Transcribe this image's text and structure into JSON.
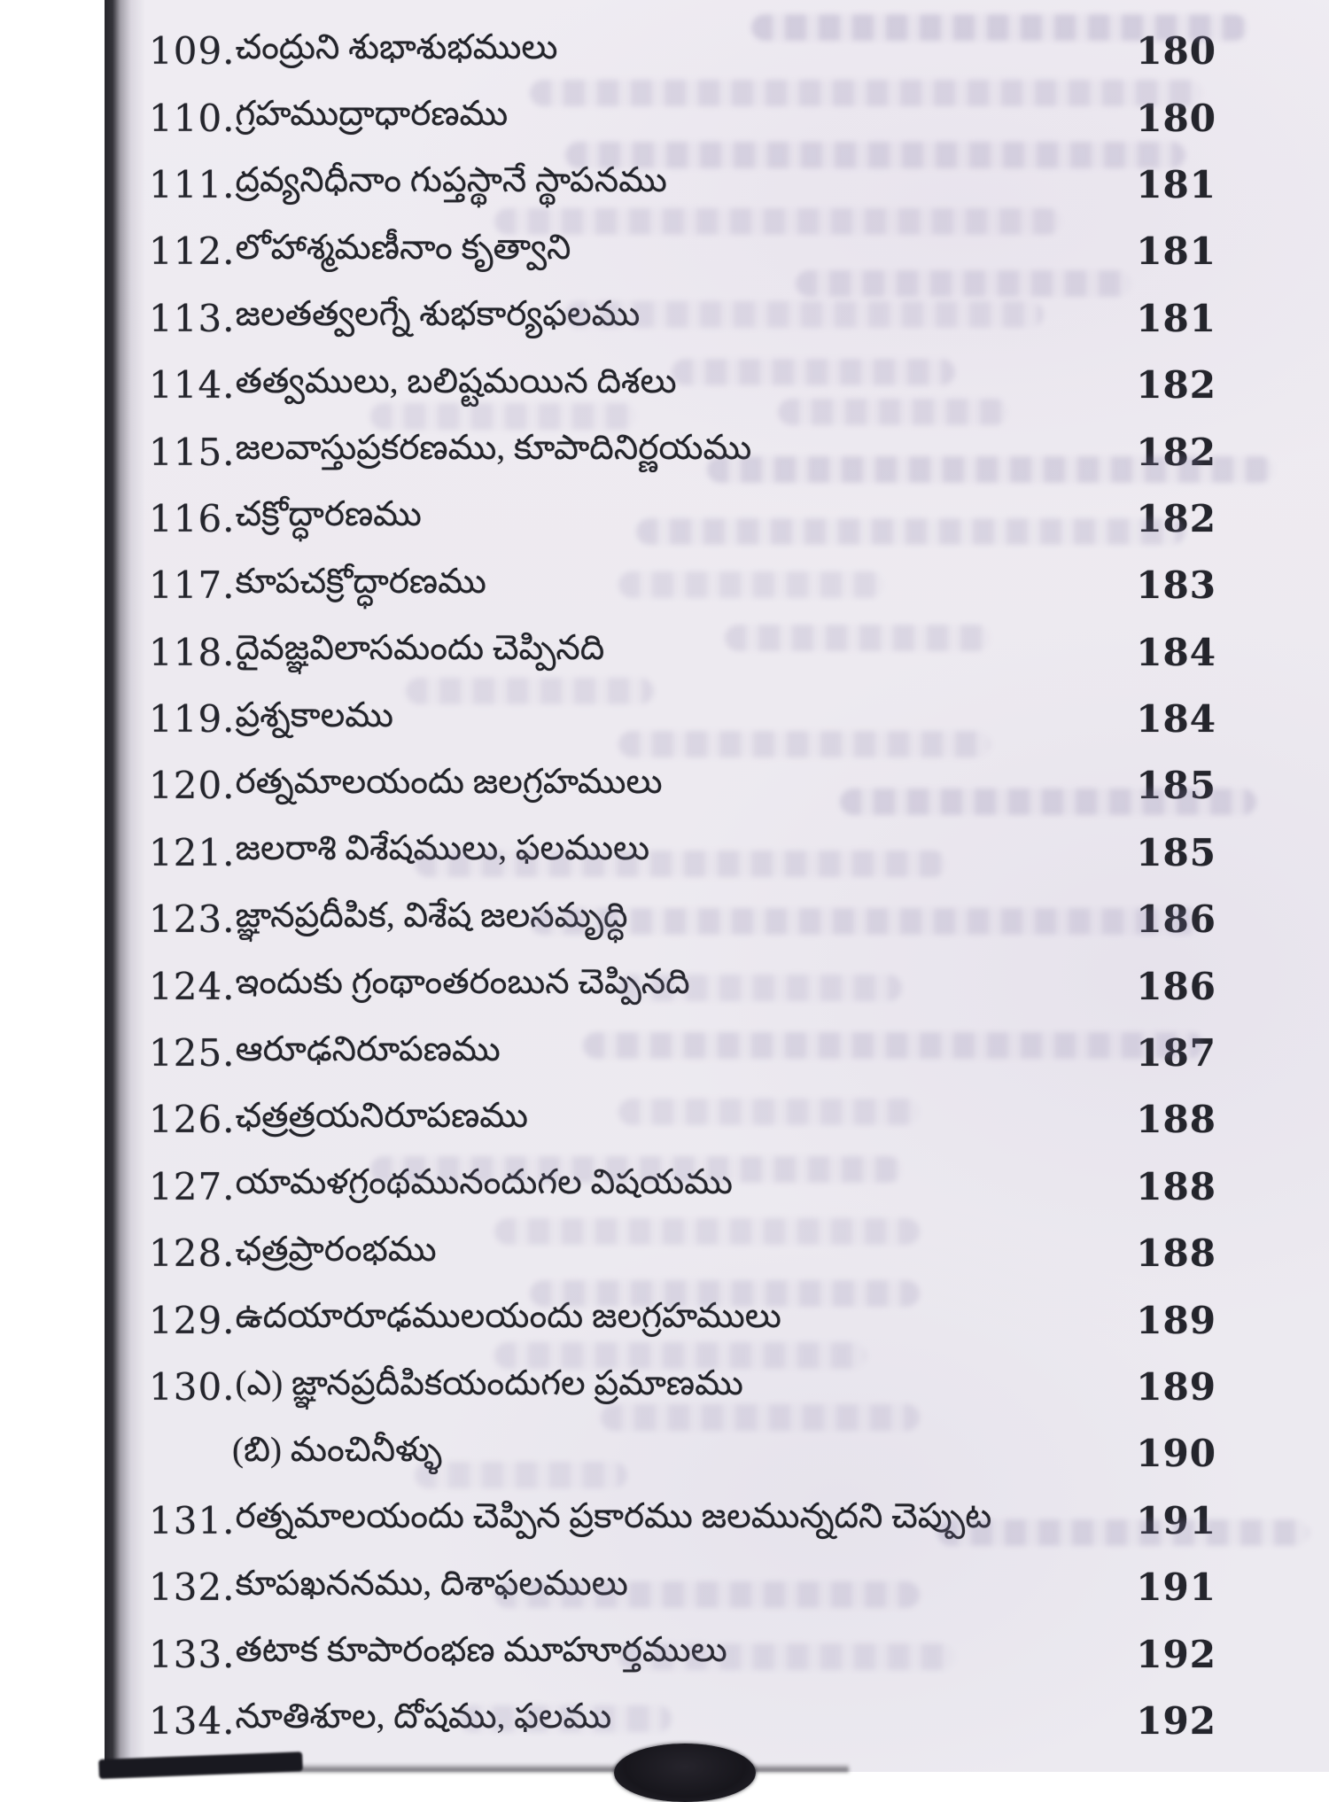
{
  "document": {
    "kind": "scanned-book-page",
    "section": "table-of-contents",
    "script": "Telugu"
  },
  "toc": {
    "entries": [
      {
        "num": "109.",
        "title": "చంద్రుని శుభాశుభములు",
        "page": "180"
      },
      {
        "num": "110.",
        "title": "గ్రహముద్రాధారణము",
        "page": "180"
      },
      {
        "num": "111.",
        "title": "ద్రవ్యనిధీనాం గుప్తస్థానే స్థాపనము",
        "page": "181"
      },
      {
        "num": "112.",
        "title": "లోహాశ్మమణీనాం కృత్వాని",
        "page": "181"
      },
      {
        "num": "113.",
        "title": "జలతత్వలగ్నే శుభకార్యఫలము",
        "page": "181"
      },
      {
        "num": "114.",
        "title": "తత్వములు, బలిష్టమయిన దిశలు",
        "page": "182"
      },
      {
        "num": "115.",
        "title": "జలవాస్తుప్రకరణము, కూపాదినిర్ణయము",
        "page": "182"
      },
      {
        "num": "116.",
        "title": "చక్రోద్ధారణము",
        "page": "182"
      },
      {
        "num": "117.",
        "title": "కూపచక్రోద్ధారణము",
        "page": "183"
      },
      {
        "num": "118.",
        "title": "దైవజ్ఞవిలాసమందు చెప్పినది",
        "page": "184"
      },
      {
        "num": "119.",
        "title": "ప్రశ్నకాలము",
        "page": "184"
      },
      {
        "num": "120.",
        "title": "రత్నమాలయందు జలగ్రహములు",
        "page": "185"
      },
      {
        "num": "121.",
        "title": "జలరాశి విశేషములు, ఫలములు",
        "page": "185"
      },
      {
        "num": "123.",
        "title": "జ్ఞానప్రదీపిక, విశేష జలసమృద్ధి",
        "page": "186"
      },
      {
        "num": "124.",
        "title": "ఇందుకు గ్రంథాంతరంబున చెప్పినది",
        "page": "186"
      },
      {
        "num": "125.",
        "title": "ఆరూఢనిరూపణము",
        "page": "187"
      },
      {
        "num": "126.",
        "title": "ఛత్రత్రయనిరూపణము",
        "page": "188"
      },
      {
        "num": "127.",
        "title": "యామళగ్రంథమునందుగల విషయము",
        "page": "188"
      },
      {
        "num": "128.",
        "title": "ఛత్రప్రారంభము",
        "page": "188"
      },
      {
        "num": "129.",
        "title": "ఉదయారూఢములయందు జలగ్రహములు",
        "page": "189"
      },
      {
        "num": "130.",
        "title": "(ఎ) జ్ఞానప్రదీపికయందుగల ప్రమాణము",
        "page": "189"
      },
      {
        "num": "",
        "title": "(బి) మంచినీళ్ళు",
        "page": "190"
      },
      {
        "num": "131.",
        "title": "రత్నమాలయందు చెప్పిన ప్రకారము జలమున్నదని చెప్పుట",
        "page": "191"
      },
      {
        "num": "132.",
        "title": "కూపఖననము, దిశాఫలములు",
        "page": "191"
      },
      {
        "num": "133.",
        "title": "తటాక కూపారంభణ మూహూర్తములు",
        "page": "192"
      },
      {
        "num": "134.",
        "title": "నూతిశూల, దోషము, ఫలము",
        "page": "192"
      }
    ]
  },
  "scan_artifacts": {
    "page_background": "#edeaf0",
    "ink_color": "#23242a",
    "spine_edge_color": "#16161c",
    "bleed_through_text": "illegible mirrored show-through from reverse side",
    "bottom_ornament": "dark ellipse partially visible at bottom edge"
  }
}
